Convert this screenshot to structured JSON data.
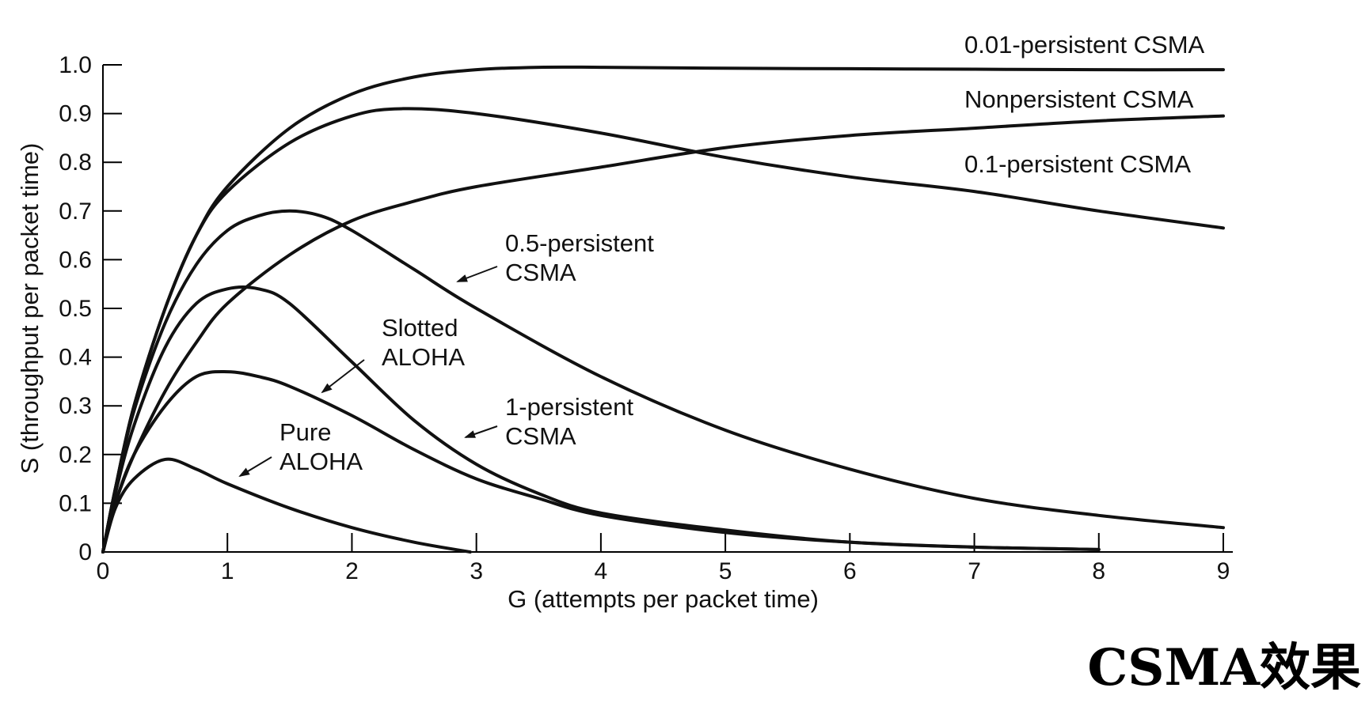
{
  "caption": "CSMA效果",
  "chart_data": {
    "type": "line",
    "xlabel": "G (attempts per packet time)",
    "ylabel": "S (throughput per packet time)",
    "xlim": [
      0,
      9
    ],
    "ylim": [
      0,
      1.0
    ],
    "x_ticks": [
      "0",
      "1",
      "2",
      "3",
      "4",
      "5",
      "6",
      "7",
      "8",
      "9"
    ],
    "y_ticks": [
      "0",
      "0.1",
      "0.2",
      "0.3",
      "0.4",
      "0.5",
      "0.6",
      "0.7",
      "0.8",
      "0.9",
      "1.0"
    ],
    "grid": false,
    "series": [
      {
        "name": "Pure ALOHA",
        "label_lines": [
          "Pure",
          "ALOHA"
        ],
        "arrow": true,
        "x": [
          0,
          0.1,
          0.25,
          0.5,
          0.75,
          1,
          1.5,
          2,
          2.5,
          2.95
        ],
        "y": [
          0,
          0.09,
          0.15,
          0.19,
          0.17,
          0.14,
          0.09,
          0.05,
          0.02,
          0
        ]
      },
      {
        "name": "Slotted ALOHA",
        "label_lines": [
          "Slotted",
          "ALOHA"
        ],
        "arrow": true,
        "x": [
          0,
          0.1,
          0.25,
          0.5,
          0.75,
          1,
          1.25,
          1.5,
          2,
          2.5,
          3,
          3.5,
          4,
          5,
          6,
          7,
          8
        ],
        "y": [
          0,
          0.1,
          0.2,
          0.3,
          0.36,
          0.37,
          0.36,
          0.34,
          0.28,
          0.21,
          0.15,
          0.11,
          0.075,
          0.04,
          0.02,
          0.01,
          0.005
        ]
      },
      {
        "name": "1-persistent CSMA",
        "label_lines": [
          "1-persistent",
          "CSMA"
        ],
        "arrow": true,
        "x": [
          0,
          0.1,
          0.25,
          0.5,
          0.75,
          1,
          1.25,
          1.5,
          2,
          2.5,
          3,
          3.5,
          4,
          5,
          6,
          7,
          8
        ],
        "y": [
          0,
          0.12,
          0.26,
          0.42,
          0.51,
          0.54,
          0.54,
          0.51,
          0.39,
          0.27,
          0.18,
          0.12,
          0.08,
          0.045,
          0.02,
          0.01,
          0.005
        ]
      },
      {
        "name": "0.5-persistent CSMA",
        "label_lines": [
          "0.5-persistent",
          "CSMA"
        ],
        "arrow": true,
        "x": [
          0,
          0.1,
          0.25,
          0.5,
          0.75,
          1,
          1.25,
          1.5,
          1.75,
          2,
          2.5,
          3,
          4,
          5,
          6,
          7,
          8,
          9
        ],
        "y": [
          0,
          0.13,
          0.29,
          0.47,
          0.59,
          0.66,
          0.69,
          0.7,
          0.69,
          0.66,
          0.58,
          0.5,
          0.36,
          0.25,
          0.17,
          0.11,
          0.075,
          0.05
        ]
      },
      {
        "name": "0.1-persistent CSMA",
        "label_lines": [
          "0.1-persistent CSMA"
        ],
        "arrow": false,
        "x": [
          0,
          0.1,
          0.25,
          0.5,
          0.75,
          1,
          1.5,
          2,
          2.5,
          3,
          4,
          5,
          6,
          7,
          8,
          9
        ],
        "y": [
          0,
          0.1,
          0.2,
          0.33,
          0.43,
          0.51,
          0.61,
          0.68,
          0.72,
          0.75,
          0.79,
          0.83,
          0.855,
          0.87,
          0.885,
          0.895
        ]
      },
      {
        "name": "Nonpersistent CSMA",
        "label_lines": [
          "Nonpersistent CSMA"
        ],
        "arrow": false,
        "x": [
          0,
          0.1,
          0.25,
          0.5,
          0.75,
          1,
          1.5,
          2,
          2.4,
          3,
          4,
          5,
          6,
          7,
          8,
          9
        ],
        "y": [
          0,
          0.13,
          0.3,
          0.5,
          0.65,
          0.74,
          0.84,
          0.895,
          0.91,
          0.9,
          0.86,
          0.81,
          0.77,
          0.74,
          0.7,
          0.665
        ]
      },
      {
        "name": "0.01-persistent CSMA",
        "label_lines": [
          "0.01-persistent CSMA"
        ],
        "arrow": false,
        "x": [
          0,
          0.1,
          0.25,
          0.5,
          0.75,
          1,
          1.5,
          2,
          2.5,
          3,
          3.5,
          4,
          5,
          6,
          7,
          8,
          9
        ],
        "y": [
          0,
          0.13,
          0.3,
          0.5,
          0.65,
          0.75,
          0.87,
          0.94,
          0.975,
          0.99,
          0.995,
          0.995,
          0.993,
          0.992,
          0.991,
          0.99,
          0.99
        ]
      }
    ]
  }
}
